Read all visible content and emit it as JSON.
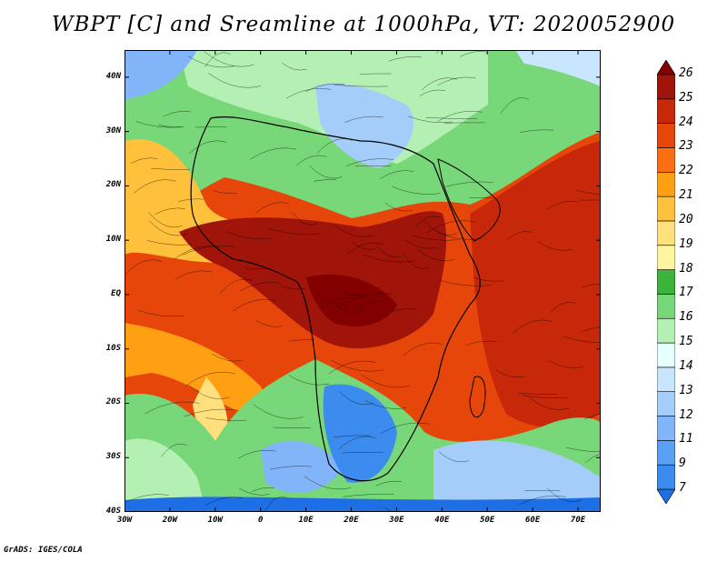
{
  "title": "WBPT [C] and Sreamline at 1000hPa, VT: 2020052900",
  "credit": "GrADS: IGES/COLA",
  "axes": {
    "lat_range": [
      -40,
      45
    ],
    "lon_range": [
      -30,
      75
    ],
    "lat_ticks": [
      {
        "value": 40,
        "label": "40N"
      },
      {
        "value": 30,
        "label": "30N"
      },
      {
        "value": 20,
        "label": "20N"
      },
      {
        "value": 10,
        "label": "10N"
      },
      {
        "value": 0,
        "label": "EQ"
      },
      {
        "value": -10,
        "label": "10S"
      },
      {
        "value": -20,
        "label": "20S"
      },
      {
        "value": -30,
        "label": "30S"
      },
      {
        "value": -40,
        "label": "40S"
      }
    ],
    "lon_ticks": [
      {
        "value": -30,
        "label": "30W"
      },
      {
        "value": -20,
        "label": "20W"
      },
      {
        "value": -10,
        "label": "10W"
      },
      {
        "value": 0,
        "label": "0"
      },
      {
        "value": 10,
        "label": "10E"
      },
      {
        "value": 20,
        "label": "20E"
      },
      {
        "value": 30,
        "label": "30E"
      },
      {
        "value": 40,
        "label": "40E"
      },
      {
        "value": 50,
        "label": "50E"
      },
      {
        "value": 60,
        "label": "60E"
      },
      {
        "value": 70,
        "label": "70E"
      }
    ]
  },
  "colorbar": {
    "levels": [
      "7",
      "9",
      "11",
      "12",
      "13",
      "14",
      "15",
      "16",
      "17",
      "18",
      "19",
      "20",
      "21",
      "22",
      "23",
      "24",
      "25",
      "26"
    ],
    "colors": [
      "#1e6ee6",
      "#3c8cf0",
      "#5aa0f5",
      "#82b4fa",
      "#a5cdfa",
      "#c8e6ff",
      "#e6ffff",
      "#b4f0b4",
      "#78d778",
      "#3cb43c",
      "#fff5a0",
      "#ffe07d",
      "#ffc03c",
      "#ffa014",
      "#fa6e14",
      "#e6460a",
      "#c8280a",
      "#a0140a",
      "#820000"
    ]
  }
}
